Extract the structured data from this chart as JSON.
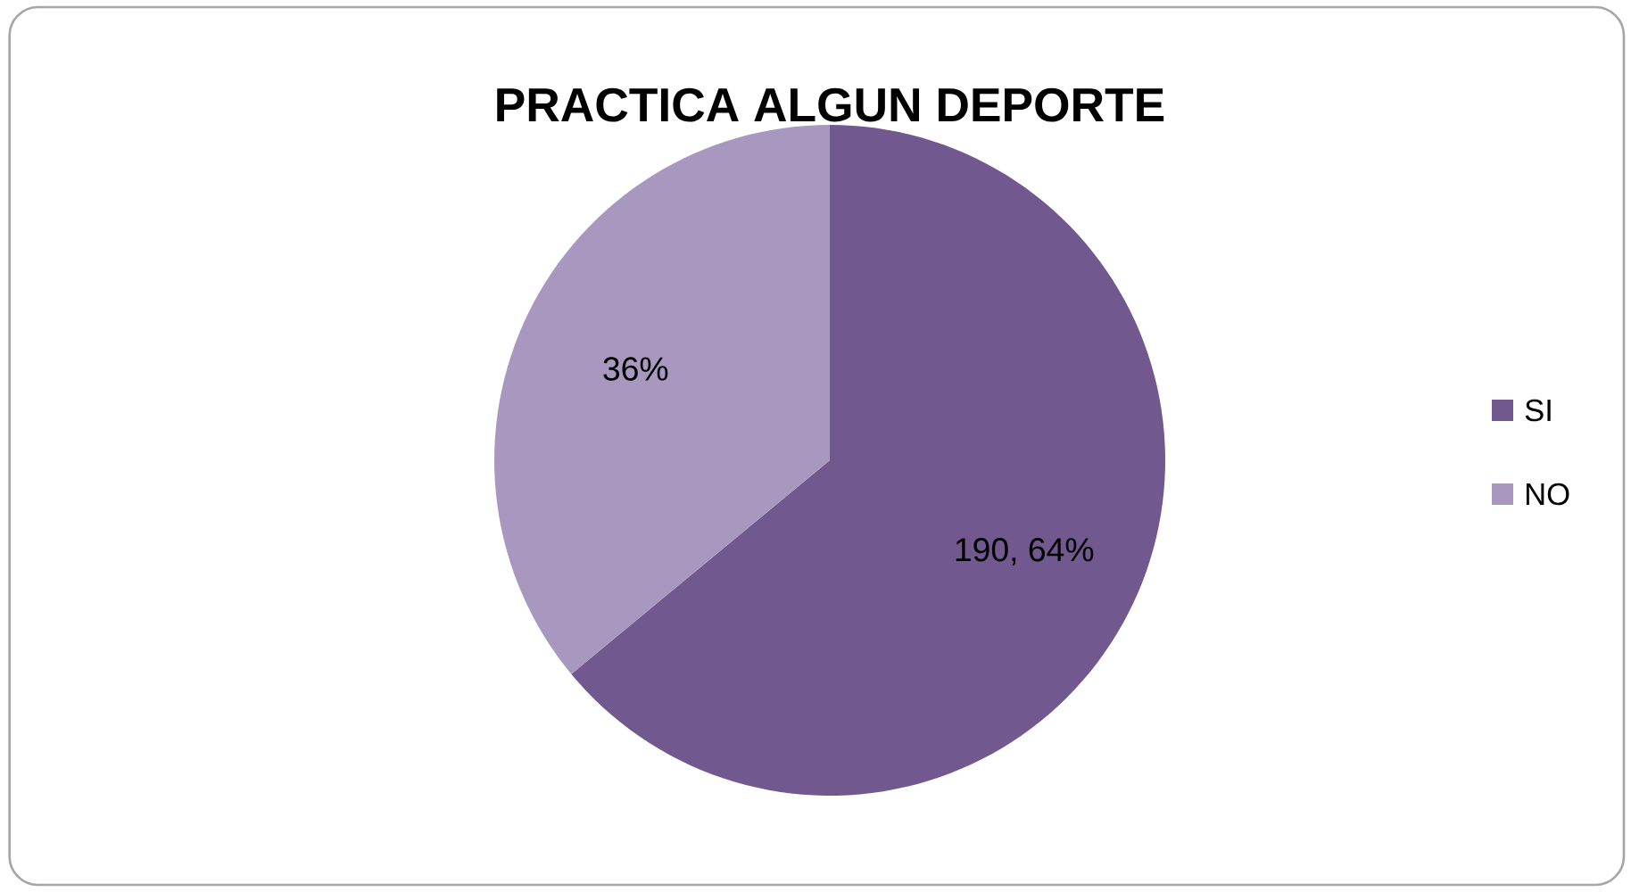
{
  "chart_data": {
    "type": "pie",
    "title": "PRACTICA  ALGUN DEPORTE",
    "categories": [
      "SI",
      "NO"
    ],
    "values": [
      64,
      36
    ],
    "colors": [
      "#71588f",
      "#a898bf"
    ],
    "value_labels": [
      "190, 64%",
      "36%"
    ],
    "legend": "right"
  }
}
